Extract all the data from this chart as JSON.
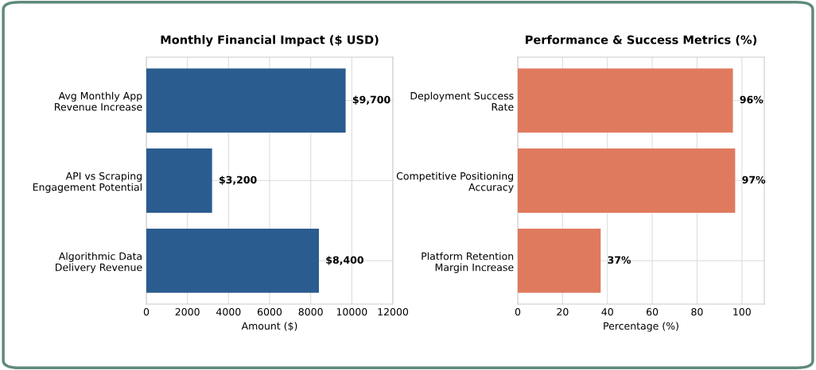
{
  "chart_data": [
    {
      "type": "bar",
      "orientation": "horizontal",
      "title": "Monthly Financial Impact ($ USD)",
      "xlabel": "Amount ($)",
      "categories": [
        "Avg Monthly App\nRevenue Increase",
        "API vs Scraping\nEngagement Potential",
        "Algorithmic Data\nDelivery Revenue"
      ],
      "values": [
        9700,
        3200,
        8400
      ],
      "value_labels": [
        "$9,700",
        "$3,200",
        "$8,400"
      ],
      "color": "#2b5c8f",
      "xlim": [
        0,
        12000
      ],
      "xticks": [
        0,
        2000,
        4000,
        6000,
        8000,
        10000,
        12000
      ],
      "grid": true
    },
    {
      "type": "bar",
      "orientation": "horizontal",
      "title": "Performance & Success Metrics (%)",
      "xlabel": "Percentage (%)",
      "categories": [
        "Deployment Success\nRate",
        "Competitive Positioning\nAccuracy",
        "Platform Retention\nMargin Increase"
      ],
      "values": [
        96,
        97,
        37
      ],
      "value_labels": [
        "96%",
        "97%",
        "37%"
      ],
      "color": "#e07a5f",
      "xlim": [
        0,
        110
      ],
      "xticks": [
        0,
        20,
        40,
        60,
        80,
        100
      ],
      "grid": true
    }
  ]
}
